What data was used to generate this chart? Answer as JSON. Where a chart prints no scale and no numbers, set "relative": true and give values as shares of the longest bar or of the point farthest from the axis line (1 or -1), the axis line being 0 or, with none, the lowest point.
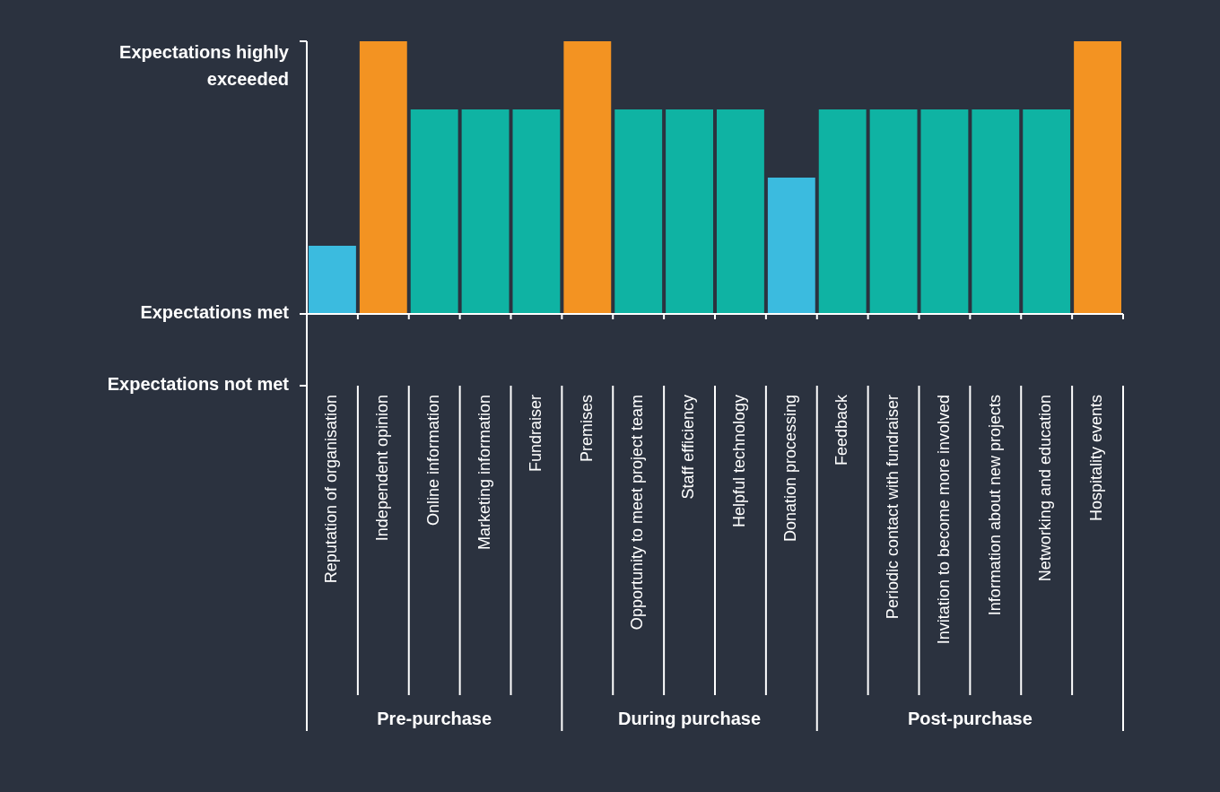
{
  "chart_data": {
    "type": "bar",
    "categories": [
      "Reputation of organisation",
      "Independent opinion",
      "Online information",
      "Marketing information",
      "Fundraiser",
      "Premises",
      "Opportunity to meet project team",
      "Staff efficiency",
      "Helpful technology",
      "Donation processing",
      "Feedback",
      "Periodic contact with fundraiser",
      "Invitation to become more involved",
      "Information about new projects",
      "Networking and education",
      "Hospitality events"
    ],
    "values": [
      0.25,
      1,
      0.75,
      0.75,
      0.75,
      1,
      0.75,
      0.75,
      0.75,
      0.5,
      0.75,
      0.75,
      0.75,
      0.75,
      0.75,
      1
    ],
    "colors": [
      "#3bbbdf",
      "#f39322",
      "#0fb3a3",
      "#0fb3a3",
      "#0fb3a3",
      "#f39322",
      "#0fb3a3",
      "#0fb3a3",
      "#0fb3a3",
      "#3bbbdf",
      "#0fb3a3",
      "#0fb3a3",
      "#0fb3a3",
      "#0fb3a3",
      "#0fb3a3",
      "#f39322"
    ],
    "relative": true,
    "annotations": [
      "Expectations highly exceeded",
      "Expectations met",
      "Expectations not met",
      "Pre-purchase",
      "During purchase",
      "Post-purchase"
    ]
  }
}
